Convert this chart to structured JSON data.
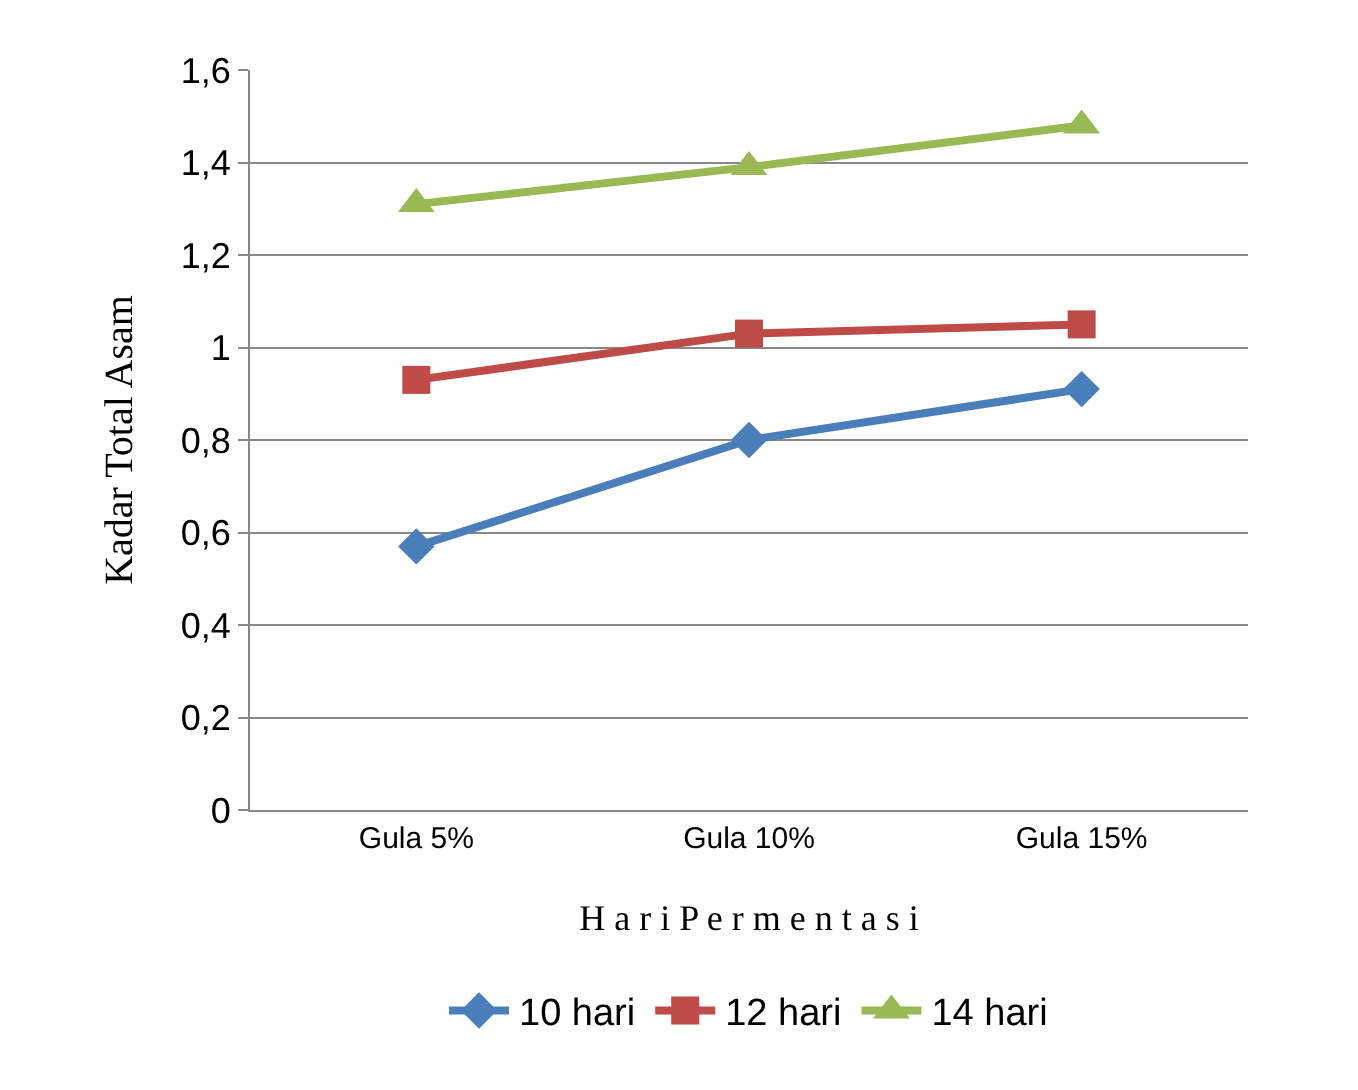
{
  "chart_data": {
    "type": "line",
    "ylabel": "Kadar Total Asam",
    "xlabel": "H a r i P e r m e n t a s i",
    "categories": [
      "Gula 5%",
      "Gula 10%",
      "Gula 15%"
    ],
    "series": [
      {
        "name": "10 hari",
        "color": "#4a7ebb",
        "marker": "diamond",
        "values": [
          0.57,
          0.8,
          0.91
        ]
      },
      {
        "name": "12 hari",
        "color": "#be4b48",
        "marker": "square",
        "values": [
          0.93,
          1.03,
          1.05
        ]
      },
      {
        "name": "14 hari",
        "color": "#98b954",
        "marker": "triangle",
        "values": [
          1.31,
          1.39,
          1.48
        ]
      }
    ],
    "ylim": [
      0,
      1.6
    ],
    "yticks": [
      0,
      {
        "value": 0.2,
        "label": "0,2"
      },
      {
        "value": 0.4,
        "label": "0,4"
      },
      {
        "value": 0.6,
        "label": "0,6"
      },
      {
        "value": 0.8,
        "label": "0,8"
      },
      1,
      {
        "value": 1.2,
        "label": "1,2"
      },
      {
        "value": 1.4,
        "label": "1,4"
      },
      {
        "value": 1.6,
        "label": "1,6"
      }
    ],
    "grid": "y",
    "legend": "bottom",
    "line_style": "solid"
  }
}
